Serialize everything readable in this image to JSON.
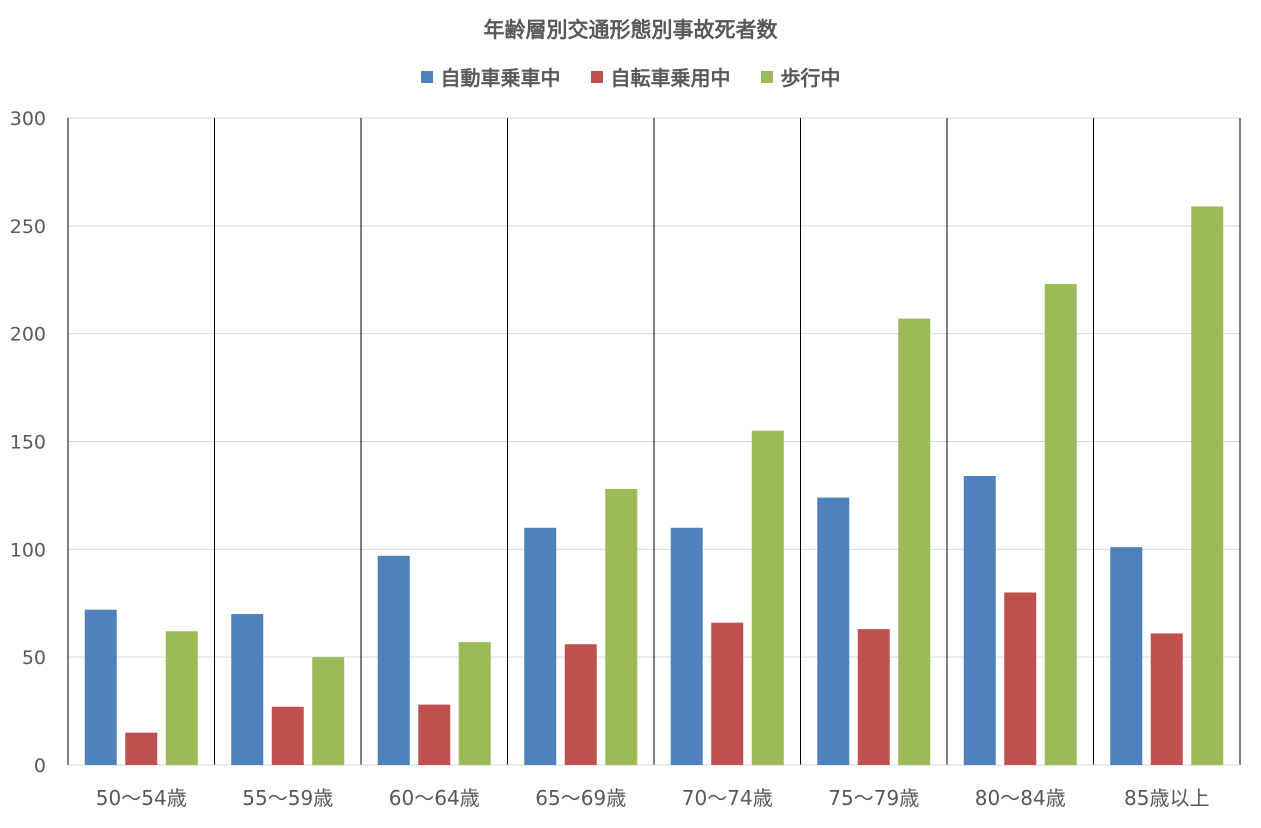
{
  "chart_data": {
    "type": "bar",
    "title": "年齢層別交通形態別事故死者数",
    "categories": [
      "50〜54歳",
      "55〜59歳",
      "60〜64歳",
      "65〜69歳",
      "70〜74歳",
      "75〜79歳",
      "80〜84歳",
      "85歳以上"
    ],
    "series": [
      {
        "name": "自動車乗車中",
        "color": "#4F81BD",
        "values": [
          72,
          70,
          97,
          110,
          110,
          124,
          134,
          101
        ]
      },
      {
        "name": "自転車乗用中",
        "color": "#C0504D",
        "values": [
          15,
          27,
          28,
          56,
          66,
          63,
          80,
          61
        ]
      },
      {
        "name": "歩行中",
        "color": "#9BBB59",
        "values": [
          62,
          50,
          57,
          128,
          155,
          207,
          223,
          259
        ]
      }
    ],
    "ylim": [
      0,
      300
    ],
    "yticks": [
      0,
      50,
      100,
      150,
      200,
      250,
      300
    ],
    "grid": true,
    "legend_position": "top"
  }
}
